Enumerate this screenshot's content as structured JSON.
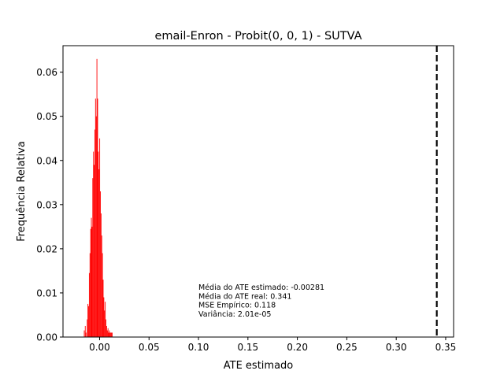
{
  "chart_data": {
    "type": "bar",
    "title": "email-Enron - Probit(0, 0, 1) - SUTVA",
    "xlabel": "ATE estimado",
    "ylabel": "Frequência Relativa",
    "xlim": [
      -0.037,
      0.358
    ],
    "ylim": [
      0,
      0.066
    ],
    "x_ticks": [
      {
        "value": 0.0,
        "label": "0.00"
      },
      {
        "value": 0.05,
        "label": "0.05"
      },
      {
        "value": 0.1,
        "label": "0.10"
      },
      {
        "value": 0.15,
        "label": "0.15"
      },
      {
        "value": 0.2,
        "label": "0.20"
      },
      {
        "value": 0.25,
        "label": "0.25"
      },
      {
        "value": 0.3,
        "label": "0.30"
      },
      {
        "value": 0.35,
        "label": "0.35"
      }
    ],
    "y_ticks": [
      {
        "value": 0.0,
        "label": "0.00"
      },
      {
        "value": 0.01,
        "label": "0.01"
      },
      {
        "value": 0.02,
        "label": "0.02"
      },
      {
        "value": 0.03,
        "label": "0.03"
      },
      {
        "value": 0.04,
        "label": "0.04"
      },
      {
        "value": 0.05,
        "label": "0.05"
      },
      {
        "value": 0.06,
        "label": "0.06"
      }
    ],
    "bar_color": "#ff0000",
    "bin_width": 0.0007,
    "bins": [
      {
        "x": -0.0155,
        "y": 0.0015
      },
      {
        "x": -0.0145,
        "y": 0.0025
      },
      {
        "x": -0.0138,
        "y": 0.001
      },
      {
        "x": -0.0125,
        "y": 0.004
      },
      {
        "x": -0.0118,
        "y": 0.0075
      },
      {
        "x": -0.0111,
        "y": 0.007
      },
      {
        "x": -0.0104,
        "y": 0.0145
      },
      {
        "x": -0.0097,
        "y": 0.019
      },
      {
        "x": -0.009,
        "y": 0.0245
      },
      {
        "x": -0.0083,
        "y": 0.027
      },
      {
        "x": -0.0076,
        "y": 0.025
      },
      {
        "x": -0.0069,
        "y": 0.036
      },
      {
        "x": -0.0062,
        "y": 0.042
      },
      {
        "x": -0.0055,
        "y": 0.039
      },
      {
        "x": -0.0048,
        "y": 0.047
      },
      {
        "x": -0.0041,
        "y": 0.054
      },
      {
        "x": -0.0034,
        "y": 0.05
      },
      {
        "x": -0.0027,
        "y": 0.063
      },
      {
        "x": -0.002,
        "y": 0.054
      },
      {
        "x": -0.0013,
        "y": 0.042
      },
      {
        "x": -0.0006,
        "y": 0.038
      },
      {
        "x": 0.0001,
        "y": 0.045
      },
      {
        "x": 0.0008,
        "y": 0.033
      },
      {
        "x": 0.0015,
        "y": 0.028
      },
      {
        "x": 0.0022,
        "y": 0.023
      },
      {
        "x": 0.0029,
        "y": 0.019
      },
      {
        "x": 0.0036,
        "y": 0.013
      },
      {
        "x": 0.0043,
        "y": 0.009
      },
      {
        "x": 0.005,
        "y": 0.006
      },
      {
        "x": 0.0057,
        "y": 0.008
      },
      {
        "x": 0.0064,
        "y": 0.004
      },
      {
        "x": 0.0071,
        "y": 0.0025
      },
      {
        "x": 0.0078,
        "y": 0.0015
      },
      {
        "x": 0.0085,
        "y": 0.002
      },
      {
        "x": 0.0092,
        "y": 0.001
      },
      {
        "x": 0.0099,
        "y": 0.0015
      },
      {
        "x": 0.0106,
        "y": 0.001
      },
      {
        "x": 0.0113,
        "y": 0.001
      },
      {
        "x": 0.012,
        "y": 0.001
      },
      {
        "x": 0.0127,
        "y": 0.001
      }
    ],
    "reference_line": {
      "x": 0.341,
      "style": "dashed",
      "color": "#000000"
    },
    "annotations": [
      "Média do ATE estimado: -0.00281",
      "Média do ATE real: 0.341",
      "MSE Empírico: 0.118",
      "Variância: 2.01e-05"
    ],
    "grid": false,
    "legend": "none"
  }
}
